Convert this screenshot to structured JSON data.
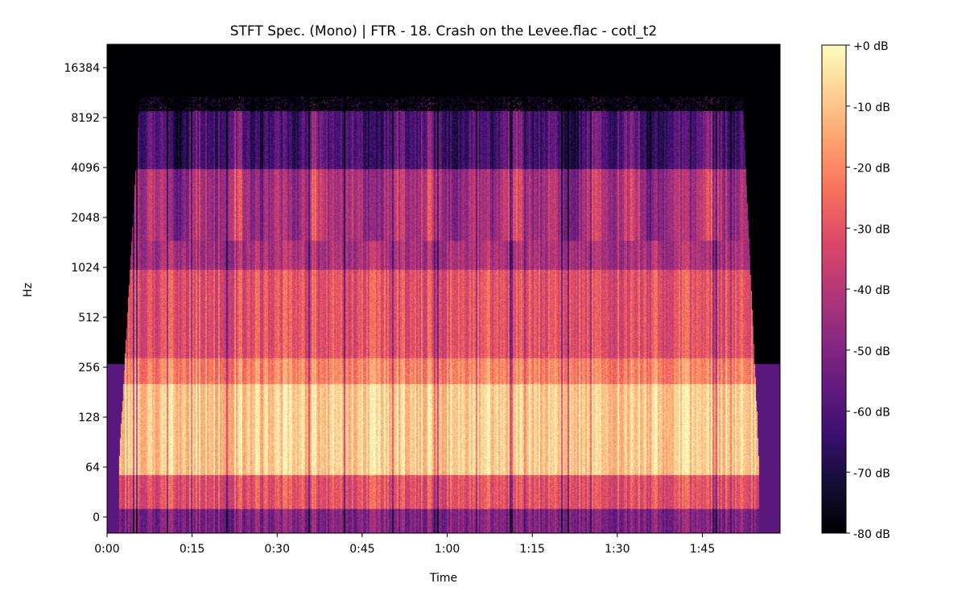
{
  "chart_data": {
    "type": "heatmap",
    "title": "STFT Spec. (Mono) | FTR - 18. Crash on the Levee.flac - cotl_t2",
    "xlabel": "Time",
    "ylabel": "Hz",
    "x_scale": "time",
    "y_scale": "symlog",
    "xlim_seconds": [
      0,
      118.7
    ],
    "ylim_hz": [
      -10,
      22050
    ],
    "x_ticks": [
      {
        "value": 0,
        "label": "0:00"
      },
      {
        "value": 15,
        "label": "0:15"
      },
      {
        "value": 30,
        "label": "0:30"
      },
      {
        "value": 45,
        "label": "0:45"
      },
      {
        "value": 60,
        "label": "1:00"
      },
      {
        "value": 75,
        "label": "1:15"
      },
      {
        "value": 90,
        "label": "1:30"
      },
      {
        "value": 105,
        "label": "1:45"
      }
    ],
    "y_ticks": [
      {
        "value": 0,
        "label": "0"
      },
      {
        "value": 64,
        "label": "64"
      },
      {
        "value": 128,
        "label": "128"
      },
      {
        "value": 256,
        "label": "256"
      },
      {
        "value": 512,
        "label": "512"
      },
      {
        "value": 1024,
        "label": "1024"
      },
      {
        "value": 2048,
        "label": "2048"
      },
      {
        "value": 4096,
        "label": "4096"
      },
      {
        "value": 8192,
        "label": "8192"
      },
      {
        "value": 16384,
        "label": "16384"
      }
    ],
    "colorbar": {
      "colormap": "magma",
      "range_db": [
        -80,
        0
      ],
      "ticks": [
        {
          "value": 0,
          "label": "+0 dB"
        },
        {
          "value": -10,
          "label": "-10 dB"
        },
        {
          "value": -20,
          "label": "-20 dB"
        },
        {
          "value": -30,
          "label": "-30 dB"
        },
        {
          "value": -40,
          "label": "-40 dB"
        },
        {
          "value": -50,
          "label": "-50 dB"
        },
        {
          "value": -60,
          "label": "-60 dB"
        },
        {
          "value": -70,
          "label": "-70 dB"
        },
        {
          "value": -80,
          "label": "-80 dB"
        }
      ]
    },
    "approx_content": {
      "signal_start_s": 2,
      "signal_end_s": 115,
      "energy_profile_db": [
        {
          "band_hz": [
            0,
            20
          ],
          "db": -50
        },
        {
          "band_hz": [
            20,
            64
          ],
          "db": -30
        },
        {
          "band_hz": [
            64,
            200
          ],
          "db": -8
        },
        {
          "band_hz": [
            200,
            300
          ],
          "db": -20
        },
        {
          "band_hz": [
            300,
            1000
          ],
          "db": -30
        },
        {
          "band_hz": [
            1000,
            4000
          ],
          "db": -42
        },
        {
          "band_hz": [
            4000,
            11000
          ],
          "db": -60
        },
        {
          "band_hz": [
            11000,
            22050
          ],
          "db": -80
        }
      ]
    },
    "grid": false,
    "legend": "colorbar-right"
  }
}
